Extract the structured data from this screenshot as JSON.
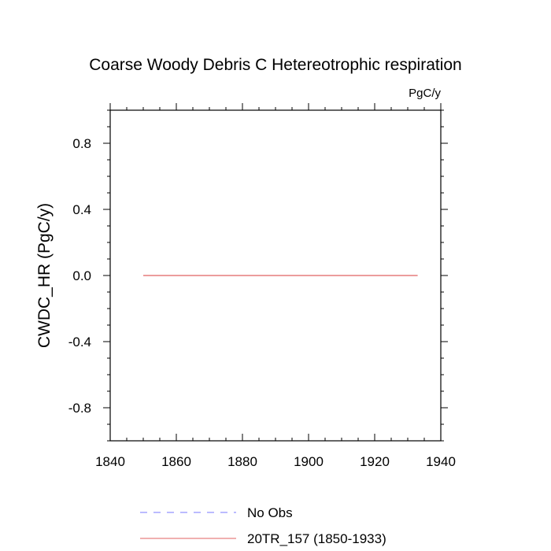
{
  "chart_data": {
    "type": "line",
    "title": "Coarse Woody Debris C Hetereotrophic respiration",
    "units_label": "PgC/y",
    "xlabel": "",
    "ylabel": "CWDC_HR  (PgC/y)",
    "xlim": [
      1840,
      1940
    ],
    "ylim": [
      -1.0,
      1.0
    ],
    "x_ticks": [
      1840,
      1860,
      1880,
      1900,
      1920,
      1940
    ],
    "x_tick_labels": [
      "1840",
      "1860",
      "1880",
      "1900",
      "1920",
      "1940"
    ],
    "y_ticks": [
      -0.8,
      -0.4,
      0.0,
      0.4,
      0.8
    ],
    "y_tick_labels": [
      "-0.8",
      "-0.4",
      "0.0",
      "0.4",
      "0.8"
    ],
    "grid": false,
    "legend_position": "bottom",
    "series": [
      {
        "name": "No Obs",
        "style": "dashed",
        "color": "#7777ff",
        "x": [],
        "y": []
      },
      {
        "name": "20TR_157 (1850-1933)",
        "style": "solid",
        "color": "#e06060",
        "x": [
          1850,
          1933
        ],
        "y": [
          0.0,
          0.0
        ]
      }
    ]
  }
}
